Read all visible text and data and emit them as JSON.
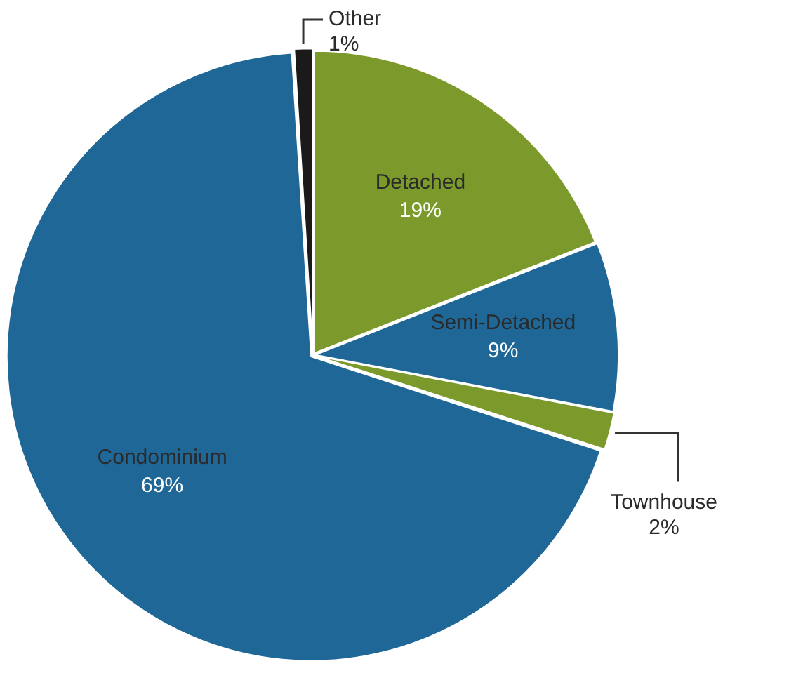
{
  "chart_data": {
    "type": "pie",
    "categories": [
      "Detached",
      "Semi-Detached",
      "Townhouse",
      "Condominium",
      "Other"
    ],
    "values": [
      19,
      9,
      2,
      69,
      1
    ],
    "colors": [
      "#7c9a2c",
      "#1e6796",
      "#7c9a2c",
      "#1e6796",
      "#1a1a1a"
    ],
    "value_labels": [
      "19%",
      "9%",
      "2%",
      "69%",
      "1%"
    ],
    "legend": false
  }
}
